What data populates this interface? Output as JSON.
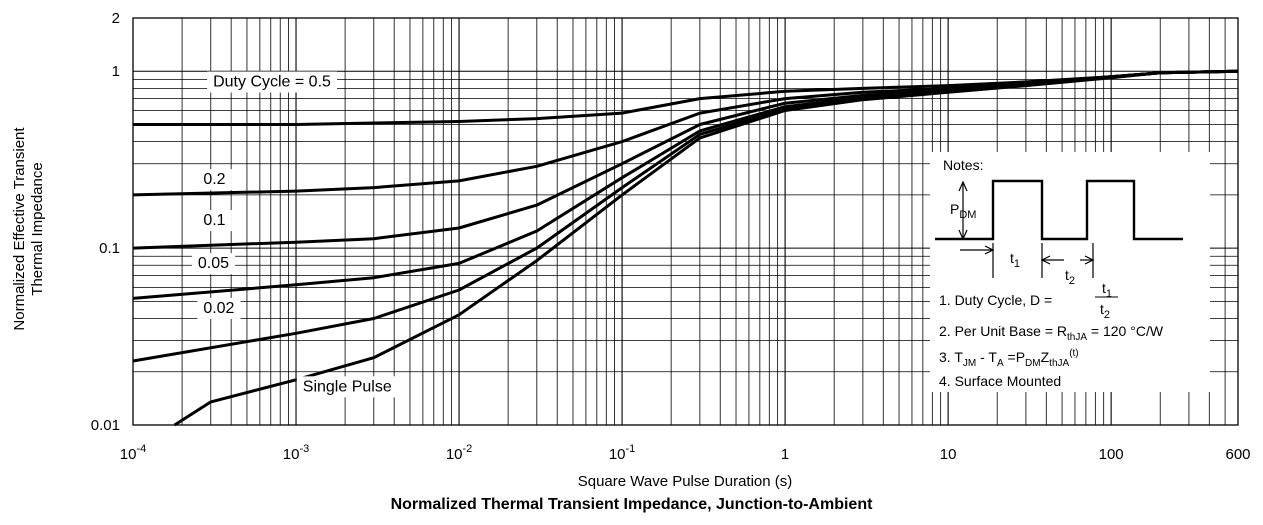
{
  "chart_data": {
    "type": "line",
    "title": "Normalized Thermal Transient Impedance, Junction-to-Ambient",
    "xlabel": "Square Wave Pulse Duration (s)",
    "ylabel_lines": [
      "Normalized Effective Transient",
      "Thermal Impedance"
    ],
    "xscale": "log",
    "yscale": "log",
    "xlim": [
      0.0001,
      600
    ],
    "ylim": [
      0.01,
      2
    ],
    "grid": true,
    "x_ticks": [
      {
        "value": 0.0001,
        "base": "10",
        "exp": "-4"
      },
      {
        "value": 0.001,
        "base": "10",
        "exp": "-3"
      },
      {
        "value": 0.01,
        "base": "10",
        "exp": "-2"
      },
      {
        "value": 0.1,
        "base": "10",
        "exp": "-1"
      },
      {
        "value": 1,
        "base": "1",
        "exp": ""
      },
      {
        "value": 10,
        "base": "10",
        "exp": ""
      },
      {
        "value": 100,
        "base": "100",
        "exp": ""
      },
      {
        "value": 600,
        "base": "600",
        "exp": ""
      }
    ],
    "y_ticks": [
      {
        "value": 0.01,
        "label": "0.01"
      },
      {
        "value": 0.1,
        "label": "0.1"
      },
      {
        "value": 1,
        "label": "1"
      },
      {
        "value": 2,
        "label": "2"
      }
    ],
    "series": [
      {
        "name": "Duty Cycle = 0.5",
        "label_x": 0.00031,
        "label_y": 0.82,
        "x": [
          0.0001,
          0.001,
          0.003,
          0.01,
          0.03,
          0.1,
          0.3,
          1,
          3,
          10,
          30,
          100,
          200,
          600
        ],
        "y": [
          0.5,
          0.5,
          0.51,
          0.52,
          0.54,
          0.58,
          0.7,
          0.77,
          0.8,
          0.83,
          0.87,
          0.93,
          0.98,
          1.0
        ]
      },
      {
        "name": "0.2",
        "label_x": 0.00027,
        "label_y": 0.23,
        "x": [
          0.0001,
          0.001,
          0.003,
          0.01,
          0.03,
          0.1,
          0.3,
          1,
          3,
          10,
          30,
          100,
          200,
          600
        ],
        "y": [
          0.2,
          0.21,
          0.22,
          0.24,
          0.29,
          0.4,
          0.58,
          0.7,
          0.76,
          0.8,
          0.86,
          0.93,
          0.98,
          1.0
        ]
      },
      {
        "name": "0.1",
        "label_x": 0.00027,
        "label_y": 0.135,
        "x": [
          0.0001,
          0.001,
          0.003,
          0.01,
          0.03,
          0.1,
          0.3,
          1,
          3,
          10,
          30,
          100,
          200,
          600
        ],
        "y": [
          0.1,
          0.108,
          0.113,
          0.13,
          0.175,
          0.3,
          0.5,
          0.66,
          0.73,
          0.79,
          0.85,
          0.93,
          0.98,
          1.0
        ]
      },
      {
        "name": "0.05",
        "label_x": 0.00025,
        "label_y": 0.077,
        "x": [
          0.0001,
          0.001,
          0.003,
          0.01,
          0.03,
          0.1,
          0.3,
          1,
          3,
          10,
          30,
          100,
          200,
          600
        ],
        "y": [
          0.052,
          0.062,
          0.068,
          0.082,
          0.125,
          0.25,
          0.46,
          0.63,
          0.71,
          0.78,
          0.85,
          0.93,
          0.98,
          1.0
        ]
      },
      {
        "name": "0.02",
        "label_x": 0.00027,
        "label_y": 0.043,
        "x": [
          0.0001,
          0.001,
          0.003,
          0.01,
          0.03,
          0.1,
          0.3,
          1,
          3,
          10,
          30,
          100,
          200,
          600
        ],
        "y": [
          0.023,
          0.033,
          0.04,
          0.058,
          0.1,
          0.22,
          0.44,
          0.61,
          0.7,
          0.77,
          0.84,
          0.93,
          0.98,
          1.0
        ]
      },
      {
        "name": "Single Pulse",
        "label_x": 0.0011,
        "label_y": 0.0155,
        "x": [
          0.00018,
          0.0003,
          0.001,
          0.003,
          0.01,
          0.03,
          0.1,
          0.3,
          1,
          3,
          10,
          30,
          100,
          200,
          600
        ],
        "y": [
          0.01,
          0.0135,
          0.018,
          0.024,
          0.042,
          0.085,
          0.2,
          0.42,
          0.6,
          0.69,
          0.76,
          0.83,
          0.92,
          0.98,
          1.0
        ]
      }
    ],
    "notes": {
      "title": "Notes:",
      "pdm_label": {
        "main": "P",
        "sub": "DM"
      },
      "t1_label": {
        "main": "t",
        "sub": "1"
      },
      "t2_label": {
        "main": "t",
        "sub": "2"
      },
      "items": [
        {
          "id": "note-duty-cycle",
          "parts": [
            [
              "1. Duty Cycle, D = ",
              "n"
            ]
          ]
        },
        {
          "id": "note-per-unit-base",
          "parts": [
            [
              "2. Per Unit Base = R",
              "n"
            ],
            [
              "thJA",
              "sub"
            ],
            [
              " = 120 °C/W",
              "n"
            ]
          ]
        },
        {
          "id": "note-temperature",
          "parts": [
            [
              "3. T",
              "n"
            ],
            [
              "JM",
              "sub"
            ],
            [
              " - T",
              "n"
            ],
            [
              "A",
              "sub"
            ],
            [
              " =P",
              "n"
            ],
            [
              "DM",
              "sub"
            ],
            [
              "Z",
              "n"
            ],
            [
              "thJA",
              "sub"
            ],
            [
              "(t)",
              "sup"
            ]
          ]
        },
        {
          "id": "note-surface-mounted",
          "parts": [
            [
              "4. Surface Mounted",
              "n"
            ]
          ]
        }
      ],
      "fraction": {
        "num_main": "t",
        "num_sub": "1",
        "den_main": "t",
        "den_sub": "2"
      }
    }
  }
}
